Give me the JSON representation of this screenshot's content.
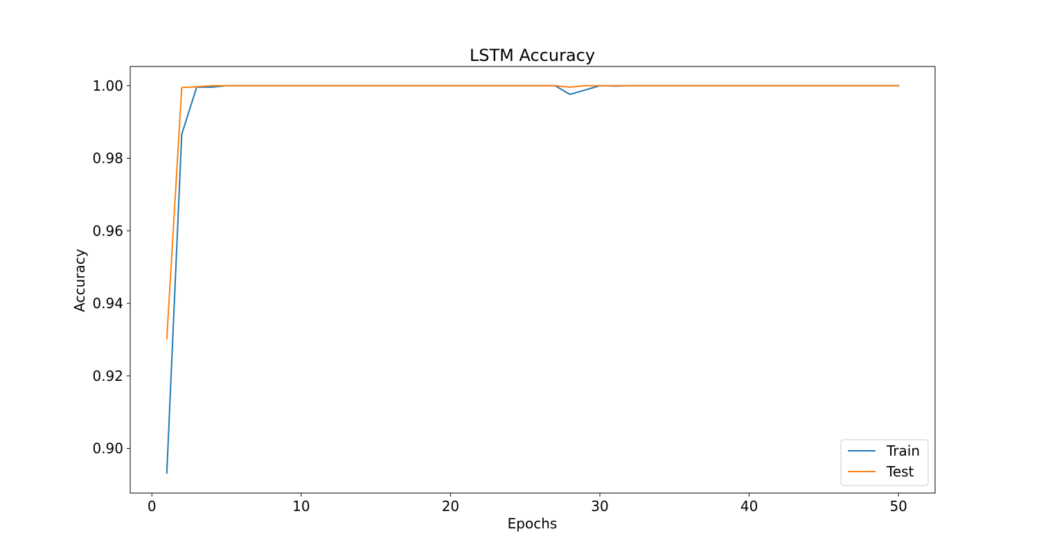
{
  "chart_data": {
    "type": "line",
    "title": "LSTM Accuracy",
    "xlabel": "Epochs",
    "ylabel": "Accuracy",
    "xlim": [
      -1.45,
      52.45
    ],
    "ylim": [
      0.8877,
      1.0053
    ],
    "xticks": [
      0,
      10,
      20,
      30,
      40,
      50
    ],
    "xtick_labels": [
      "0",
      "10",
      "20",
      "30",
      "40",
      "50"
    ],
    "yticks": [
      0.9,
      0.92,
      0.94,
      0.96,
      0.98,
      1.0
    ],
    "ytick_labels": [
      "0.90",
      "0.92",
      "0.94",
      "0.96",
      "0.98",
      "1.00"
    ],
    "grid": false,
    "legend_position": "lower right",
    "x": [
      1,
      2,
      3,
      4,
      5,
      6,
      7,
      8,
      9,
      10,
      11,
      12,
      13,
      14,
      15,
      16,
      17,
      18,
      19,
      20,
      21,
      22,
      23,
      24,
      25,
      26,
      27,
      28,
      29,
      30,
      31,
      32,
      33,
      34,
      35,
      36,
      37,
      38,
      39,
      40,
      41,
      42,
      43,
      44,
      45,
      46,
      47,
      48,
      49,
      50
    ],
    "series": [
      {
        "name": "Train",
        "color": "#1f77b4",
        "values": [
          0.8932,
          0.9866,
          0.9996,
          0.9996,
          1.0,
          1.0,
          1.0,
          1.0,
          1.0,
          1.0,
          1.0,
          1.0,
          1.0,
          1.0,
          1.0,
          1.0,
          1.0,
          1.0,
          1.0,
          1.0,
          1.0,
          1.0,
          1.0,
          1.0,
          1.0,
          1.0,
          1.0,
          0.9976,
          0.9988,
          1.0,
          0.9999,
          1.0,
          1.0,
          1.0,
          1.0,
          1.0,
          1.0,
          1.0,
          1.0,
          1.0,
          1.0,
          1.0,
          1.0,
          1.0,
          1.0,
          1.0,
          1.0,
          1.0,
          1.0,
          1.0
        ]
      },
      {
        "name": "Test",
        "color": "#ff7f0e",
        "values": [
          0.9302,
          0.9995,
          0.9997,
          1.0,
          1.0,
          1.0,
          1.0,
          1.0,
          1.0,
          1.0,
          1.0,
          1.0,
          1.0,
          1.0,
          1.0,
          1.0,
          1.0,
          1.0,
          1.0,
          1.0,
          1.0,
          1.0,
          1.0,
          1.0,
          1.0,
          1.0,
          1.0,
          0.9996,
          1.0,
          1.0,
          1.0,
          1.0,
          1.0,
          1.0,
          1.0,
          1.0,
          1.0,
          1.0,
          1.0,
          1.0,
          1.0,
          1.0,
          1.0,
          1.0,
          1.0,
          1.0,
          1.0,
          1.0,
          1.0,
          1.0
        ]
      }
    ]
  }
}
